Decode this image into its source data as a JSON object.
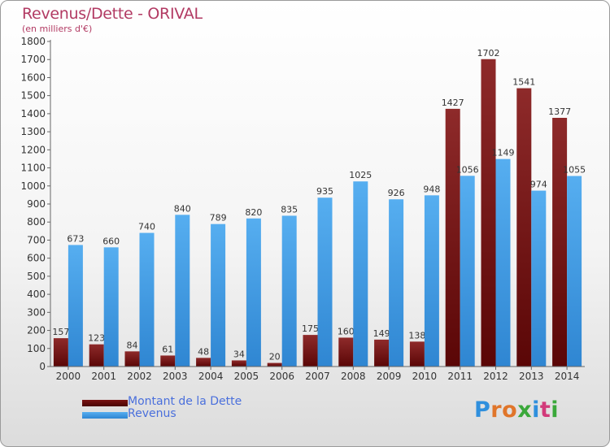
{
  "header": {
    "title": "Revenus/Dette - ORIVAL",
    "subtitle": "(en milliers d'€)"
  },
  "legend": {
    "dette_label": "Montant de la Dette",
    "revenus_label": "Revenus"
  },
  "logo": {
    "text": "Proxiti",
    "letters": [
      "P",
      "r",
      "o",
      "x",
      "i",
      "t",
      "i"
    ],
    "colors": [
      "#2f8fdd",
      "#e0752a",
      "#e0752a",
      "#3aa83a",
      "#2f8fdd",
      "#d23a7a",
      "#3aa83a"
    ]
  },
  "colors": {
    "dette": "#7a1414",
    "revenus": "#48a2e6",
    "title": "#b23a63",
    "legend_text": "#4a6fdc"
  },
  "chart_data": {
    "type": "bar",
    "title": "Revenus/Dette - ORIVAL",
    "subtitle": "(en milliers d'€)",
    "categories": [
      "2000",
      "2001",
      "2002",
      "2003",
      "2004",
      "2005",
      "2006",
      "2007",
      "2008",
      "2009",
      "2010",
      "2011",
      "2012",
      "2013",
      "2014"
    ],
    "series": [
      {
        "name": "Montant de la Dette",
        "values": [
          157,
          123,
          84,
          61,
          48,
          34,
          20,
          175,
          160,
          149,
          138,
          1427,
          1702,
          1541,
          1377
        ]
      },
      {
        "name": "Revenus",
        "values": [
          673,
          660,
          740,
          840,
          789,
          820,
          835,
          935,
          1025,
          926,
          948,
          1056,
          1149,
          974,
          1055
        ]
      }
    ],
    "ylim": [
      0,
      1800
    ],
    "yticks": [
      0,
      100,
      200,
      300,
      400,
      500,
      600,
      700,
      800,
      900,
      1000,
      1100,
      1200,
      1300,
      1400,
      1500,
      1600,
      1700,
      1800
    ],
    "grid": false,
    "legend": "bottom-left"
  }
}
